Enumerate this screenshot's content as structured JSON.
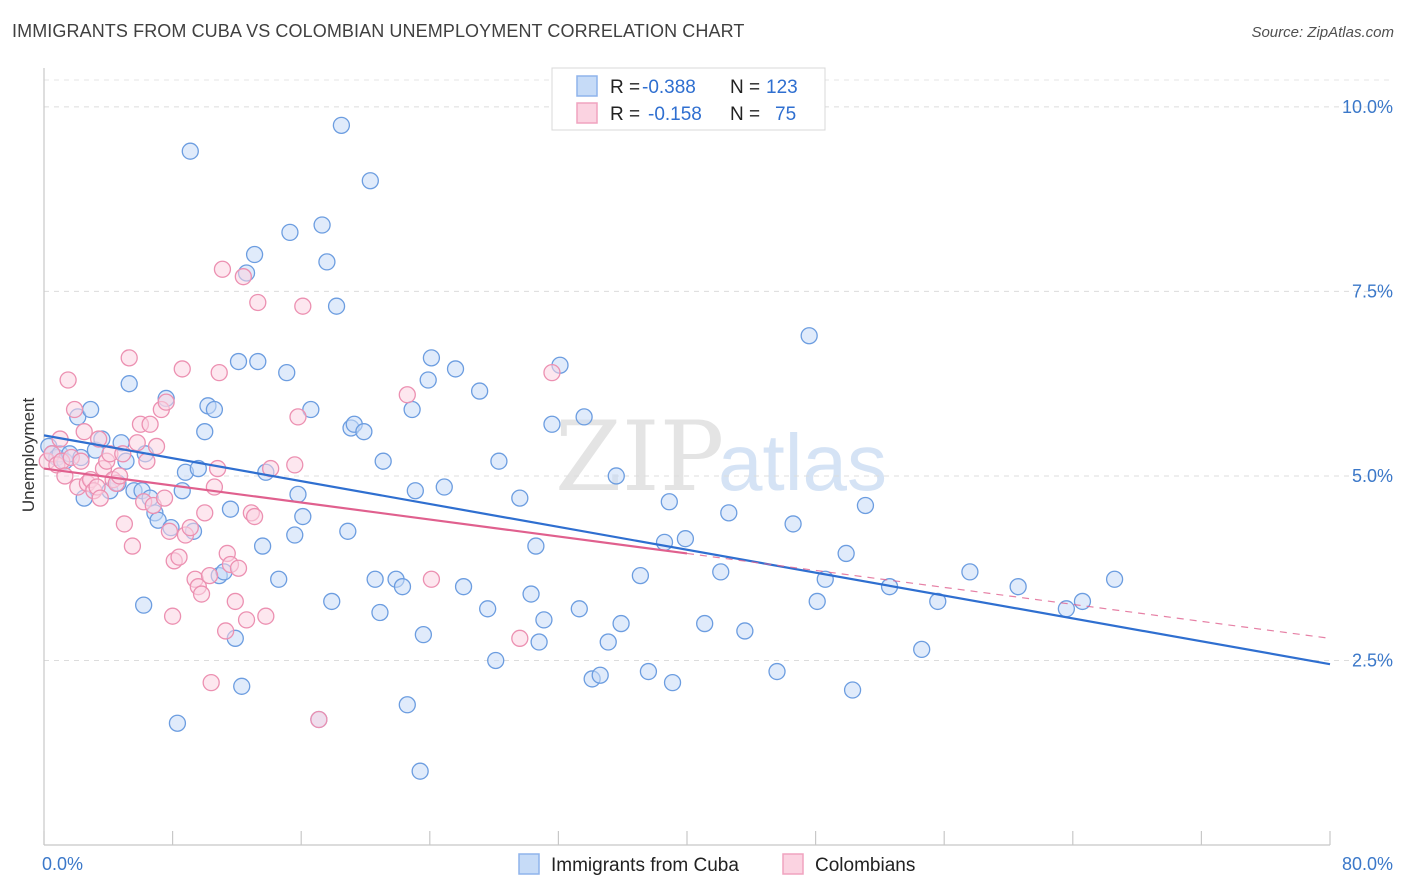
{
  "title": "IMMIGRANTS FROM CUBA VS COLOMBIAN UNEMPLOYMENT CORRELATION CHART",
  "source": "Source: ZipAtlas.com",
  "watermark": {
    "zip": "ZIP",
    "atlas": "atlas"
  },
  "legend": {
    "rows": [
      {
        "r_label": "R =",
        "r_value": "-0.388",
        "n_label": "N =",
        "n_value": "123",
        "color": "#8fb4ec",
        "fill": "#c6dbf7"
      },
      {
        "r_label": "R =",
        "r_value": "-0.158",
        "n_label": "N =",
        "n_value": "75",
        "color": "#f0a3bf",
        "fill": "#fbd3e1"
      }
    ]
  },
  "chart_data": {
    "type": "scatter",
    "title": "IMMIGRANTS FROM CUBA VS COLOMBIAN UNEMPLOYMENT CORRELATION CHART",
    "xlabel": "",
    "ylabel": "Unemployment",
    "xlim": [
      0,
      80
    ],
    "ylim": [
      0,
      10.5
    ],
    "x_tick_labels": [
      "0.0%",
      "80.0%"
    ],
    "y_ticks": [
      2.5,
      5.0,
      7.5,
      10.0
    ],
    "y_tick_labels": [
      "2.5%",
      "5.0%",
      "7.5%",
      "10.0%"
    ],
    "grid": true,
    "series": [
      {
        "name": "Immigrants from Cuba",
        "color": "#6c9de0",
        "fill": "#c6dbf7",
        "trend": {
          "x": [
            0,
            80
          ],
          "y": [
            5.55,
            2.45
          ],
          "color": "#2f6fd0",
          "dashed": false
        },
        "points": [
          [
            0.3,
            5.4
          ],
          [
            0.5,
            5.3
          ],
          [
            0.8,
            5.25
          ],
          [
            1.0,
            5.3
          ],
          [
            1.3,
            5.2
          ],
          [
            1.6,
            5.3
          ],
          [
            2.1,
            5.8
          ],
          [
            2.5,
            4.7
          ],
          [
            2.9,
            5.9
          ],
          [
            3.2,
            5.35
          ],
          [
            3.6,
            5.5
          ],
          [
            4.1,
            4.8
          ],
          [
            4.6,
            4.9
          ],
          [
            4.8,
            5.45
          ],
          [
            5.1,
            5.2
          ],
          [
            5.3,
            6.25
          ],
          [
            5.6,
            4.8
          ],
          [
            6.1,
            4.8
          ],
          [
            6.2,
            3.25
          ],
          [
            6.3,
            5.3
          ],
          [
            6.6,
            4.7
          ],
          [
            6.9,
            4.5
          ],
          [
            7.1,
            4.4
          ],
          [
            7.6,
            6.05
          ],
          [
            7.9,
            4.3
          ],
          [
            8.3,
            1.65
          ],
          [
            8.6,
            4.8
          ],
          [
            8.8,
            5.05
          ],
          [
            9.1,
            9.4
          ],
          [
            9.3,
            4.25
          ],
          [
            9.6,
            5.1
          ],
          [
            10.0,
            5.6
          ],
          [
            10.2,
            5.95
          ],
          [
            10.6,
            5.9
          ],
          [
            10.9,
            3.65
          ],
          [
            11.2,
            3.7
          ],
          [
            11.6,
            4.55
          ],
          [
            11.9,
            2.8
          ],
          [
            12.1,
            6.55
          ],
          [
            12.3,
            2.15
          ],
          [
            12.6,
            7.75
          ],
          [
            13.1,
            8.0
          ],
          [
            13.3,
            6.55
          ],
          [
            13.6,
            4.05
          ],
          [
            13.8,
            5.05
          ],
          [
            14.6,
            3.6
          ],
          [
            15.1,
            6.4
          ],
          [
            15.3,
            8.3
          ],
          [
            15.6,
            4.2
          ],
          [
            15.8,
            4.75
          ],
          [
            16.1,
            4.45
          ],
          [
            16.6,
            5.9
          ],
          [
            17.1,
            1.7
          ],
          [
            17.3,
            8.4
          ],
          [
            17.6,
            7.9
          ],
          [
            17.9,
            3.3
          ],
          [
            18.2,
            7.3
          ],
          [
            18.5,
            9.75
          ],
          [
            18.9,
            4.25
          ],
          [
            19.1,
            5.65
          ],
          [
            19.3,
            5.7
          ],
          [
            19.9,
            5.6
          ],
          [
            20.3,
            9.0
          ],
          [
            20.6,
            3.6
          ],
          [
            20.9,
            3.15
          ],
          [
            21.1,
            5.2
          ],
          [
            21.9,
            3.6
          ],
          [
            22.3,
            3.5
          ],
          [
            22.6,
            1.9
          ],
          [
            22.9,
            5.9
          ],
          [
            23.1,
            4.8
          ],
          [
            23.4,
            1.0
          ],
          [
            23.6,
            2.85
          ],
          [
            23.9,
            6.3
          ],
          [
            24.1,
            6.6
          ],
          [
            24.9,
            4.85
          ],
          [
            25.6,
            6.45
          ],
          [
            26.1,
            3.5
          ],
          [
            27.1,
            6.15
          ],
          [
            27.6,
            3.2
          ],
          [
            28.1,
            2.5
          ],
          [
            28.3,
            5.2
          ],
          [
            29.6,
            4.7
          ],
          [
            30.3,
            3.4
          ],
          [
            30.6,
            4.05
          ],
          [
            30.8,
            2.75
          ],
          [
            31.1,
            3.05
          ],
          [
            31.6,
            5.7
          ],
          [
            32.1,
            6.5
          ],
          [
            33.3,
            3.2
          ],
          [
            33.6,
            5.8
          ],
          [
            34.1,
            2.25
          ],
          [
            34.6,
            2.3
          ],
          [
            35.1,
            2.75
          ],
          [
            35.6,
            5.0
          ],
          [
            35.9,
            3.0
          ],
          [
            37.1,
            3.65
          ],
          [
            37.6,
            2.35
          ],
          [
            38.6,
            4.1
          ],
          [
            38.9,
            4.65
          ],
          [
            39.1,
            2.2
          ],
          [
            39.9,
            4.15
          ],
          [
            41.1,
            3.0
          ],
          [
            42.1,
            3.7
          ],
          [
            42.6,
            4.5
          ],
          [
            43.6,
            2.9
          ],
          [
            45.6,
            2.35
          ],
          [
            46.6,
            4.35
          ],
          [
            47.6,
            6.9
          ],
          [
            48.1,
            3.3
          ],
          [
            48.6,
            3.6
          ],
          [
            49.9,
            3.95
          ],
          [
            50.3,
            2.1
          ],
          [
            51.1,
            4.6
          ],
          [
            52.6,
            3.5
          ],
          [
            54.6,
            2.65
          ],
          [
            55.6,
            3.3
          ],
          [
            57.6,
            3.7
          ],
          [
            60.6,
            3.5
          ],
          [
            63.6,
            3.2
          ],
          [
            64.6,
            3.3
          ],
          [
            66.6,
            3.6
          ],
          [
            2.3,
            5.25
          ]
        ]
      },
      {
        "name": "Colombians",
        "color": "#ec90b1",
        "fill": "#fbd3e1",
        "trend": {
          "x": [
            0,
            40
          ],
          "y": [
            5.1,
            3.95
          ],
          "color": "#e0608e",
          "dashed": false
        },
        "trend_extension": {
          "x": [
            40,
            80
          ],
          "y": [
            3.95,
            2.8
          ],
          "color": "#e0608e",
          "dashed": true
        },
        "points": [
          [
            0.2,
            5.2
          ],
          [
            0.5,
            5.3
          ],
          [
            0.8,
            5.15
          ],
          [
            1.1,
            5.2
          ],
          [
            1.3,
            5.0
          ],
          [
            1.5,
            6.3
          ],
          [
            1.7,
            5.25
          ],
          [
            1.9,
            5.9
          ],
          [
            2.1,
            4.85
          ],
          [
            2.3,
            5.2
          ],
          [
            2.5,
            5.6
          ],
          [
            2.7,
            4.9
          ],
          [
            2.9,
            4.95
          ],
          [
            3.1,
            4.8
          ],
          [
            3.3,
            4.85
          ],
          [
            3.5,
            4.7
          ],
          [
            3.7,
            5.1
          ],
          [
            3.9,
            5.2
          ],
          [
            4.1,
            5.3
          ],
          [
            4.3,
            4.95
          ],
          [
            4.5,
            4.9
          ],
          [
            4.7,
            5.0
          ],
          [
            4.9,
            5.3
          ],
          [
            5.0,
            4.35
          ],
          [
            5.3,
            6.6
          ],
          [
            5.5,
            4.05
          ],
          [
            5.8,
            5.45
          ],
          [
            6.0,
            5.7
          ],
          [
            6.2,
            4.65
          ],
          [
            6.4,
            5.2
          ],
          [
            6.6,
            5.7
          ],
          [
            6.8,
            4.6
          ],
          [
            7.0,
            5.4
          ],
          [
            7.3,
            5.9
          ],
          [
            7.5,
            4.7
          ],
          [
            7.6,
            6.0
          ],
          [
            7.8,
            4.25
          ],
          [
            8.0,
            3.1
          ],
          [
            8.1,
            3.85
          ],
          [
            8.4,
            3.9
          ],
          [
            8.6,
            6.45
          ],
          [
            8.8,
            4.2
          ],
          [
            9.1,
            4.3
          ],
          [
            9.4,
            3.6
          ],
          [
            9.6,
            3.5
          ],
          [
            9.8,
            3.4
          ],
          [
            10.0,
            4.5
          ],
          [
            10.3,
            3.65
          ],
          [
            10.4,
            2.2
          ],
          [
            10.6,
            4.85
          ],
          [
            10.8,
            5.1
          ],
          [
            10.9,
            6.4
          ],
          [
            11.1,
            7.8
          ],
          [
            11.3,
            2.9
          ],
          [
            11.4,
            3.95
          ],
          [
            11.6,
            3.8
          ],
          [
            11.9,
            3.3
          ],
          [
            12.1,
            3.75
          ],
          [
            12.4,
            7.7
          ],
          [
            12.6,
            3.05
          ],
          [
            12.9,
            4.5
          ],
          [
            13.1,
            4.45
          ],
          [
            13.3,
            7.35
          ],
          [
            13.8,
            3.1
          ],
          [
            14.1,
            5.1
          ],
          [
            15.6,
            5.15
          ],
          [
            15.8,
            5.8
          ],
          [
            16.1,
            7.3
          ],
          [
            17.1,
            1.7
          ],
          [
            24.1,
            3.6
          ],
          [
            22.6,
            6.1
          ],
          [
            29.6,
            2.8
          ],
          [
            31.6,
            6.4
          ],
          [
            3.4,
            5.5
          ],
          [
            1.0,
            5.5
          ]
        ]
      }
    ]
  },
  "bottom_legend": [
    {
      "label": "Immigrants from Cuba",
      "color": "#8fb4ec",
      "fill": "#c6dbf7"
    },
    {
      "label": "Colombians",
      "color": "#f0a3bf",
      "fill": "#fbd3e1"
    }
  ]
}
